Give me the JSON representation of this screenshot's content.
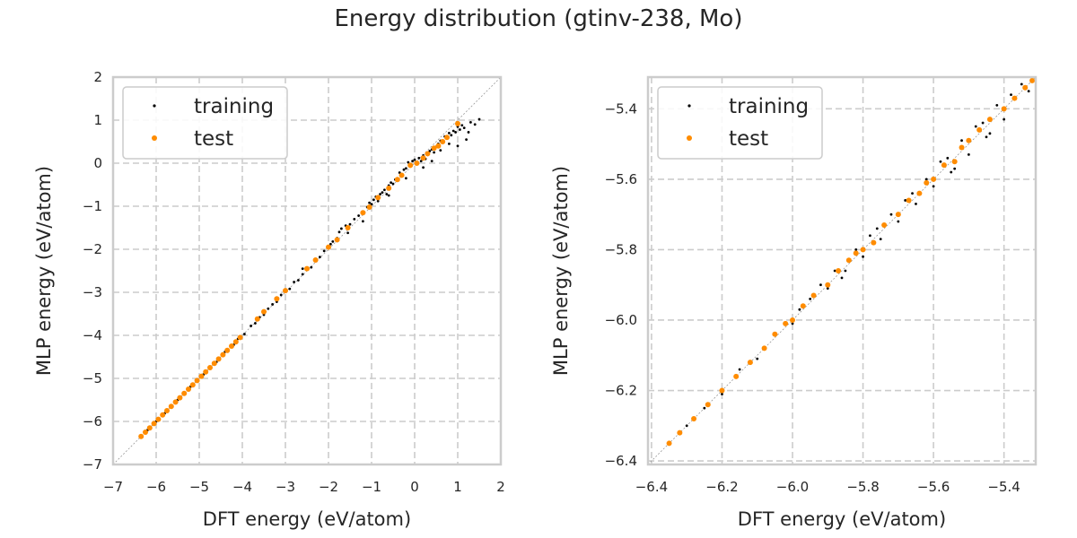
{
  "figure": {
    "title": "Energy distribution (gtinv-238, Mo)"
  },
  "colors": {
    "training": "#000000",
    "test": "#ff8c00",
    "grid": "#cccccc",
    "frame": "#cccccc",
    "diagonal": "#999999",
    "text": "#262626"
  },
  "chart_data": [
    {
      "type": "scatter",
      "title": "",
      "xlabel": "DFT energy (eV/atom)",
      "ylabel": "MLP energy (eV/atom)",
      "xlim": [
        -7,
        2
      ],
      "ylim": [
        -7,
        2
      ],
      "xticks": [
        -7,
        -6,
        -5,
        -4,
        -3,
        -2,
        -1,
        0,
        1,
        2
      ],
      "yticks": [
        -7,
        -6,
        -5,
        -4,
        -3,
        -2,
        -1,
        0,
        1,
        2
      ],
      "xtick_labels": [
        "−7",
        "−6",
        "−5",
        "−4",
        "−3",
        "−2",
        "−1",
        "0",
        "1",
        "2"
      ],
      "ytick_labels": [
        "−7",
        "−6",
        "−5",
        "−4",
        "−3",
        "−2",
        "−1",
        "0",
        "1",
        "2"
      ],
      "grid": true,
      "legend": "upper-left",
      "diagonal": true,
      "series": [
        {
          "name": "training",
          "color": "#000000",
          "points": [
            [
              -6.35,
              -6.35
            ],
            [
              -6.2,
              -6.2
            ],
            [
              -6.0,
              -6.0
            ],
            [
              -5.8,
              -5.81
            ],
            [
              -5.5,
              -5.5
            ],
            [
              -5.2,
              -5.19
            ],
            [
              -4.9,
              -4.91
            ],
            [
              -4.6,
              -4.62
            ],
            [
              -4.4,
              -4.38
            ],
            [
              -4.2,
              -4.22
            ],
            [
              -4.1,
              -4.08
            ],
            [
              -3.95,
              -3.97
            ],
            [
              -3.8,
              -3.78
            ],
            [
              -3.7,
              -3.72
            ],
            [
              -3.6,
              -3.58
            ],
            [
              -3.5,
              -3.52
            ],
            [
              -3.4,
              -3.38
            ],
            [
              -3.3,
              -3.28
            ],
            [
              -3.2,
              -3.22
            ],
            [
              -3.1,
              -3.06
            ],
            [
              -3.0,
              -2.98
            ],
            [
              -2.9,
              -2.92
            ],
            [
              -2.8,
              -2.76
            ],
            [
              -2.7,
              -2.72
            ],
            [
              -2.6,
              -2.58
            ],
            [
              -2.5,
              -2.46
            ],
            [
              -2.4,
              -2.42
            ],
            [
              -2.3,
              -2.27
            ],
            [
              -2.2,
              -2.18
            ],
            [
              -2.1,
              -2.04
            ],
            [
              -2.0,
              -1.97
            ],
            [
              -1.95,
              -1.88
            ],
            [
              -1.9,
              -1.82
            ],
            [
              -1.8,
              -1.74
            ],
            [
              -1.75,
              -1.6
            ],
            [
              -1.7,
              -1.52
            ],
            [
              -1.6,
              -1.45
            ],
            [
              -1.55,
              -1.62
            ],
            [
              -1.5,
              -1.42
            ],
            [
              -1.4,
              -1.3
            ],
            [
              -1.3,
              -1.22
            ],
            [
              -1.2,
              -1.15
            ],
            [
              -1.1,
              -1.02
            ],
            [
              -1.05,
              -0.92
            ],
            [
              -1.0,
              -0.95
            ],
            [
              -0.95,
              -0.85
            ],
            [
              -0.9,
              -0.78
            ],
            [
              -0.85,
              -0.88
            ],
            [
              -0.8,
              -0.72
            ],
            [
              -0.75,
              -0.68
            ],
            [
              -0.7,
              -0.62
            ],
            [
              -0.65,
              -0.72
            ],
            [
              -0.6,
              -0.52
            ],
            [
              -0.55,
              -0.45
            ],
            [
              -0.5,
              -0.48
            ],
            [
              -0.45,
              -0.38
            ],
            [
              -0.4,
              -0.35
            ],
            [
              -0.35,
              -0.22
            ],
            [
              -0.3,
              -0.28
            ],
            [
              -0.25,
              -0.15
            ],
            [
              -0.2,
              -0.12
            ],
            [
              -0.15,
              0.02
            ],
            [
              -0.1,
              -0.05
            ],
            [
              -0.05,
              0.05
            ],
            [
              0.0,
              0.08
            ],
            [
              0.05,
              0.02
            ],
            [
              0.1,
              0.12
            ],
            [
              0.15,
              0.05
            ],
            [
              0.2,
              0.18
            ],
            [
              0.25,
              0.1
            ],
            [
              0.3,
              0.22
            ],
            [
              0.35,
              0.28
            ],
            [
              0.4,
              0.32
            ],
            [
              0.45,
              0.25
            ],
            [
              0.5,
              0.38
            ],
            [
              0.55,
              0.45
            ],
            [
              0.6,
              0.52
            ],
            [
              0.65,
              0.48
            ],
            [
              0.7,
              0.62
            ],
            [
              0.75,
              0.58
            ],
            [
              0.8,
              0.7
            ],
            [
              0.85,
              0.65
            ],
            [
              0.9,
              0.75
            ],
            [
              0.95,
              0.72
            ],
            [
              1.0,
              0.85
            ],
            [
              1.05,
              0.78
            ],
            [
              1.1,
              0.88
            ],
            [
              1.15,
              0.82
            ],
            [
              1.2,
              0.55
            ],
            [
              1.25,
              0.72
            ],
            [
              1.3,
              0.95
            ],
            [
              1.4,
              0.9
            ],
            [
              1.5,
              1.02
            ],
            [
              0.2,
              -0.1
            ],
            [
              0.4,
              0.05
            ],
            [
              0.6,
              0.3
            ],
            [
              0.8,
              0.45
            ],
            [
              1.0,
              0.4
            ],
            [
              -0.2,
              -0.35
            ],
            [
              -0.6,
              -0.75
            ],
            [
              -1.2,
              -1.35
            ],
            [
              -2.6,
              -2.45
            ]
          ]
        },
        {
          "name": "test",
          "color": "#ff8c00",
          "points": [
            [
              -6.35,
              -6.35
            ],
            [
              -6.25,
              -6.25
            ],
            [
              -6.15,
              -6.15
            ],
            [
              -6.05,
              -6.05
            ],
            [
              -5.95,
              -5.95
            ],
            [
              -5.85,
              -5.85
            ],
            [
              -5.75,
              -5.75
            ],
            [
              -5.65,
              -5.65
            ],
            [
              -5.55,
              -5.55
            ],
            [
              -5.45,
              -5.45
            ],
            [
              -5.35,
              -5.35
            ],
            [
              -5.25,
              -5.25
            ],
            [
              -5.15,
              -5.15
            ],
            [
              -5.05,
              -5.05
            ],
            [
              -4.95,
              -4.95
            ],
            [
              -4.85,
              -4.85
            ],
            [
              -4.75,
              -4.75
            ],
            [
              -4.65,
              -4.65
            ],
            [
              -4.55,
              -4.55
            ],
            [
              -4.45,
              -4.45
            ],
            [
              -4.35,
              -4.35
            ],
            [
              -4.25,
              -4.25
            ],
            [
              -4.15,
              -4.15
            ],
            [
              -4.05,
              -4.05
            ],
            [
              -3.65,
              -3.62
            ],
            [
              -3.5,
              -3.45
            ],
            [
              -3.2,
              -3.15
            ],
            [
              -3.0,
              -2.96
            ],
            [
              -2.5,
              -2.45
            ],
            [
              -2.3,
              -2.25
            ],
            [
              -2.0,
              -1.95
            ],
            [
              -1.8,
              -1.78
            ],
            [
              -1.55,
              -1.5
            ],
            [
              -1.2,
              -1.15
            ],
            [
              -1.05,
              -1.02
            ],
            [
              -0.85,
              -0.8
            ],
            [
              -0.6,
              -0.58
            ],
            [
              -0.4,
              -0.38
            ],
            [
              -0.3,
              -0.28
            ],
            [
              -0.1,
              -0.05
            ],
            [
              0.05,
              0.0
            ],
            [
              0.2,
              0.12
            ],
            [
              0.3,
              0.22
            ],
            [
              0.45,
              0.35
            ],
            [
              0.55,
              0.4
            ],
            [
              0.65,
              0.5
            ],
            [
              0.75,
              0.6
            ],
            [
              1.0,
              0.92
            ]
          ]
        }
      ]
    },
    {
      "type": "scatter",
      "title": "",
      "xlabel": "DFT energy (eV/atom)",
      "ylabel": "MLP energy (eV/atom)",
      "xlim": [
        -6.41,
        -5.31
      ],
      "ylim": [
        -6.41,
        -5.31
      ],
      "xticks": [
        -6.4,
        -6.2,
        -6.0,
        -5.8,
        -5.6,
        -5.4
      ],
      "yticks": [
        -6.4,
        -6.2,
        -6.0,
        -5.8,
        -5.6,
        -5.4
      ],
      "xtick_labels": [
        "−6.4",
        "−6.2",
        "−6.0",
        "−5.8",
        "−5.6",
        "−5.4"
      ],
      "ytick_labels": [
        "−6.4",
        "−6.2",
        "−6.0",
        "−5.8",
        "−5.6",
        "−5.4"
      ],
      "grid": true,
      "legend": "upper-left",
      "diagonal": true,
      "series": [
        {
          "name": "training",
          "color": "#000000",
          "points": [
            [
              -6.35,
              -6.35
            ],
            [
              -6.3,
              -6.3
            ],
            [
              -6.25,
              -6.25
            ],
            [
              -6.2,
              -6.21
            ],
            [
              -6.15,
              -6.14
            ],
            [
              -6.1,
              -6.11
            ],
            [
              -6.05,
              -6.04
            ],
            [
              -6.0,
              -6.01
            ],
            [
              -5.95,
              -5.94
            ],
            [
              -5.9,
              -5.91
            ],
            [
              -5.88,
              -5.86
            ],
            [
              -5.85,
              -5.86
            ],
            [
              -5.82,
              -5.8
            ],
            [
              -5.8,
              -5.82
            ],
            [
              -5.78,
              -5.76
            ],
            [
              -5.75,
              -5.77
            ],
            [
              -5.72,
              -5.7
            ],
            [
              -5.7,
              -5.72
            ],
            [
              -5.68,
              -5.66
            ],
            [
              -5.65,
              -5.67
            ],
            [
              -5.62,
              -5.6
            ],
            [
              -5.6,
              -5.62
            ],
            [
              -5.58,
              -5.55
            ],
            [
              -5.55,
              -5.58
            ],
            [
              -5.52,
              -5.49
            ],
            [
              -5.5,
              -5.53
            ],
            [
              -5.48,
              -5.45
            ],
            [
              -5.45,
              -5.48
            ],
            [
              -5.42,
              -5.39
            ],
            [
              -5.4,
              -5.43
            ],
            [
              -5.38,
              -5.36
            ],
            [
              -5.35,
              -5.33
            ],
            [
              -5.33,
              -5.35
            ],
            [
              -5.98,
              -5.97
            ],
            [
              -5.92,
              -5.9
            ],
            [
              -5.86,
              -5.88
            ],
            [
              -5.76,
              -5.74
            ],
            [
              -5.66,
              -5.64
            ],
            [
              -5.56,
              -5.54
            ],
            [
              -5.46,
              -5.44
            ],
            [
              -5.44,
              -5.47
            ],
            [
              -5.54,
              -5.57
            ]
          ]
        },
        {
          "name": "test",
          "color": "#ff8c00",
          "points": [
            [
              -6.35,
              -6.35
            ],
            [
              -6.32,
              -6.32
            ],
            [
              -6.28,
              -6.28
            ],
            [
              -6.24,
              -6.24
            ],
            [
              -6.2,
              -6.2
            ],
            [
              -6.16,
              -6.16
            ],
            [
              -6.12,
              -6.12
            ],
            [
              -6.08,
              -6.08
            ],
            [
              -6.05,
              -6.04
            ],
            [
              -6.02,
              -6.01
            ],
            [
              -6.0,
              -6.0
            ],
            [
              -5.97,
              -5.96
            ],
            [
              -5.94,
              -5.93
            ],
            [
              -5.9,
              -5.9
            ],
            [
              -5.87,
              -5.86
            ],
            [
              -5.84,
              -5.83
            ],
            [
              -5.8,
              -5.8
            ],
            [
              -5.77,
              -5.78
            ],
            [
              -5.74,
              -5.73
            ],
            [
              -5.7,
              -5.7
            ],
            [
              -5.67,
              -5.66
            ],
            [
              -5.64,
              -5.64
            ],
            [
              -5.6,
              -5.6
            ],
            [
              -5.57,
              -5.56
            ],
            [
              -5.54,
              -5.55
            ],
            [
              -5.5,
              -5.49
            ],
            [
              -5.47,
              -5.46
            ],
            [
              -5.44,
              -5.43
            ],
            [
              -5.4,
              -5.4
            ],
            [
              -5.37,
              -5.37
            ],
            [
              -5.34,
              -5.34
            ],
            [
              -5.32,
              -5.32
            ],
            [
              -5.82,
              -5.81
            ],
            [
              -5.62,
              -5.61
            ],
            [
              -5.52,
              -5.51
            ]
          ]
        }
      ]
    }
  ]
}
